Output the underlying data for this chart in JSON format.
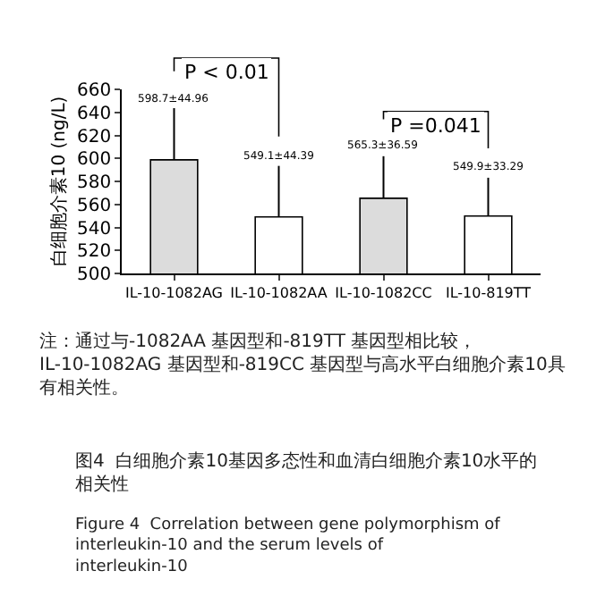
{
  "chart_data": {
    "type": "bar",
    "ylabel": "白细胞介素10 (ng/L)",
    "categories": [
      "IL-10-1082AG",
      "IL-10-1082AA",
      "IL-10-1082CC",
      "IL-10-819TT"
    ],
    "values": [
      598.7,
      549.1,
      565.3,
      549.9
    ],
    "errors": [
      [
        598.7,
        643.66
      ],
      [
        549.1,
        593.49
      ],
      [
        565.3,
        601.89
      ],
      [
        549.9,
        583.19
      ]
    ],
    "colors": [
      "#dcdcdc",
      "#ffffff",
      "#dcdcdc",
      "#ffffff"
    ],
    "ylim": [
      500,
      660
    ],
    "yticks": [
      500,
      520,
      540,
      560,
      580,
      600,
      620,
      640,
      660
    ],
    "annotations": [
      "P < 0.01",
      "P =0.041",
      {
        "text": "598.7±44.96",
        "x": "IL-10-1082AG",
        "y": 643.66
      },
      {
        "text": "549.1±44.39",
        "x": "IL-10-1082AA",
        "y": 593.49
      },
      {
        "text": "565.3±36.59",
        "x": "IL-10-1082CC",
        "y": 601.89
      },
      {
        "text": "549.9±33.29",
        "x": "IL-10-819TT",
        "y": 583.19
      },
      "注：通过与-1082AA 基因型和-819TT 基因型相比较，IL-10-1082AG 基因型和-819CC 基因型与高水平白细胞介素10具有相关性。",
      "图4  白细胞介素10基因多态性和血清白细胞介素10水平的相关性",
      "Figure 4  Correlation between gene polymorphism of interleukin-10 and the serum levels of interleukin-10"
    ]
  }
}
